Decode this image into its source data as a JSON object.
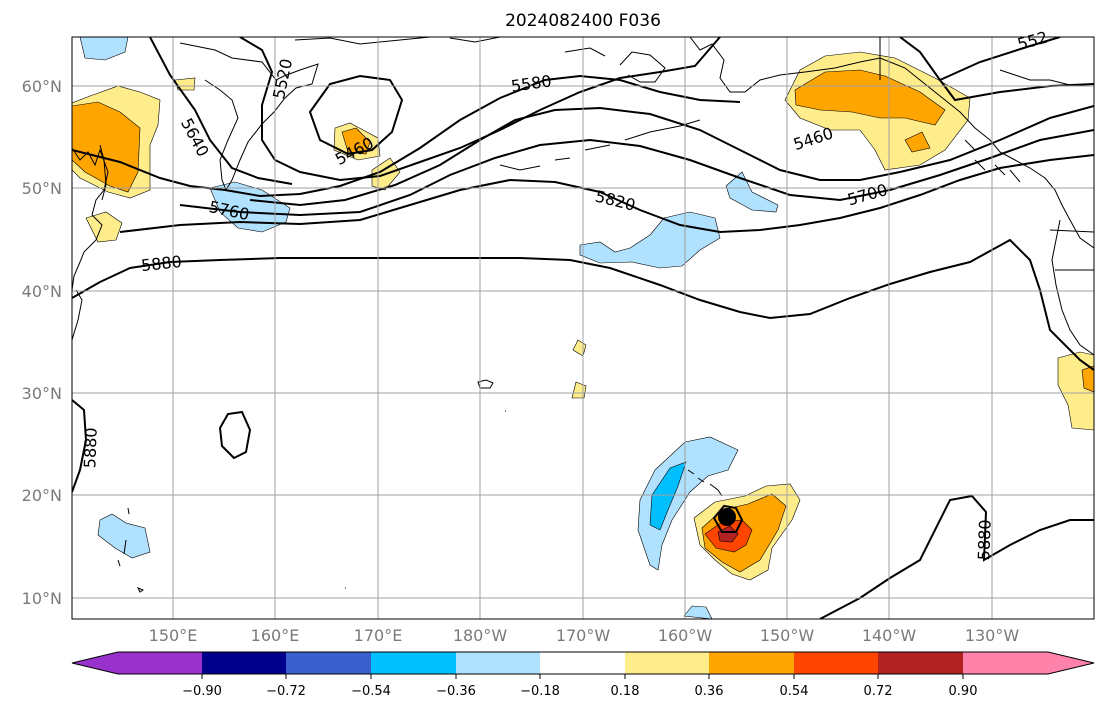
{
  "title": "2024082400 F036",
  "lat_labels": [
    "60°N",
    "50°N",
    "40°N",
    "30°N",
    "20°N",
    "10°N"
  ],
  "lon_labels": [
    "150°E",
    "160°E",
    "170°E",
    "180°W",
    "170°W",
    "160°W",
    "150°W",
    "140°W",
    "130°W"
  ],
  "contour_labels": [
    "5520",
    "5640",
    "5460",
    "5580",
    "5760",
    "5820",
    "5880",
    "5460",
    "5700",
    "5880",
    "5880",
    "552"
  ],
  "colorbar": {
    "ticks": [
      "−0.90",
      "−0.72",
      "−0.54",
      "−0.36",
      "−0.18",
      "0.18",
      "0.36",
      "0.54",
      "0.72",
      "0.90"
    ],
    "colors": [
      "#9932cc",
      "#00008b",
      "#3a5fcd",
      "#00bfff",
      "#b0e2ff",
      "#ffffff",
      "#ffec8b",
      "#ffa500",
      "#ff4500",
      "#b22222",
      "#ff82ab"
    ]
  }
}
